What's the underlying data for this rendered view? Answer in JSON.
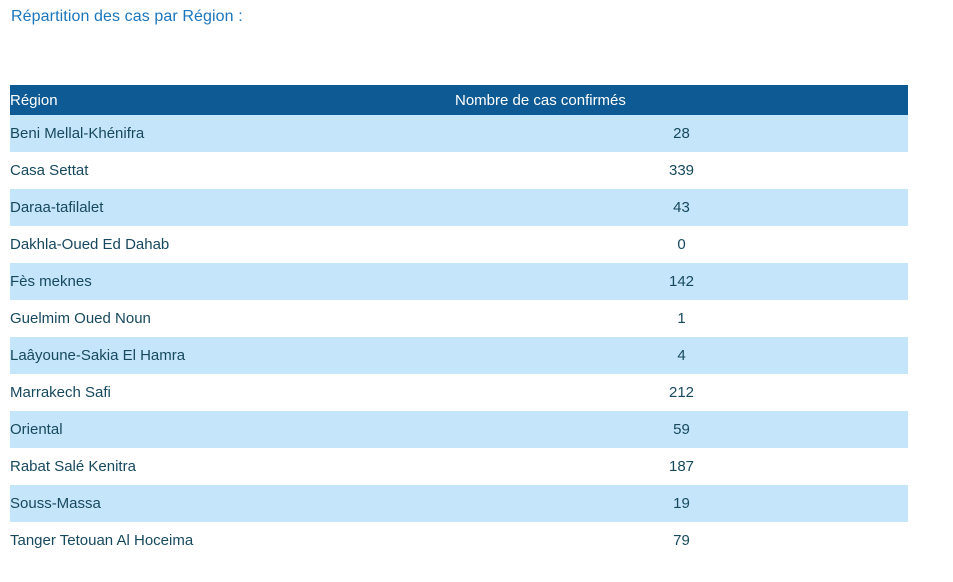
{
  "page": {
    "title": "Répartition des cas par Région :"
  },
  "table": {
    "columns": [
      {
        "label": "Région"
      },
      {
        "label": "Nombre de cas confirmés"
      }
    ],
    "rows": [
      {
        "region": "Beni Mellal-Khénifra",
        "cases": "28"
      },
      {
        "region": "Casa Settat",
        "cases": "339"
      },
      {
        "region": "Daraa-tafilalet",
        "cases": "43"
      },
      {
        "region": "Dakhla-Oued Ed Dahab",
        "cases": "0"
      },
      {
        "region": "Fès meknes",
        "cases": "142"
      },
      {
        "region": "Guelmim Oued Noun",
        "cases": "1"
      },
      {
        "region": "Laâyoune-Sakia El Hamra",
        "cases": "4"
      },
      {
        "region": "Marrakech Safi",
        "cases": "212"
      },
      {
        "region": "Oriental",
        "cases": "59"
      },
      {
        "region": "Rabat Salé Kenitra",
        "cases": "187"
      },
      {
        "region": "Souss-Massa",
        "cases": "19"
      },
      {
        "region": "Tanger Tetouan Al Hoceima",
        "cases": "79"
      }
    ],
    "colors": {
      "header_bg": "#0E5A94",
      "header_text": "#FFFFFF",
      "row_alt_bg": "#C5E5FB",
      "row_bg": "#FFFFFF",
      "cell_text": "#17495E",
      "title_text": "#1B75BC"
    }
  }
}
